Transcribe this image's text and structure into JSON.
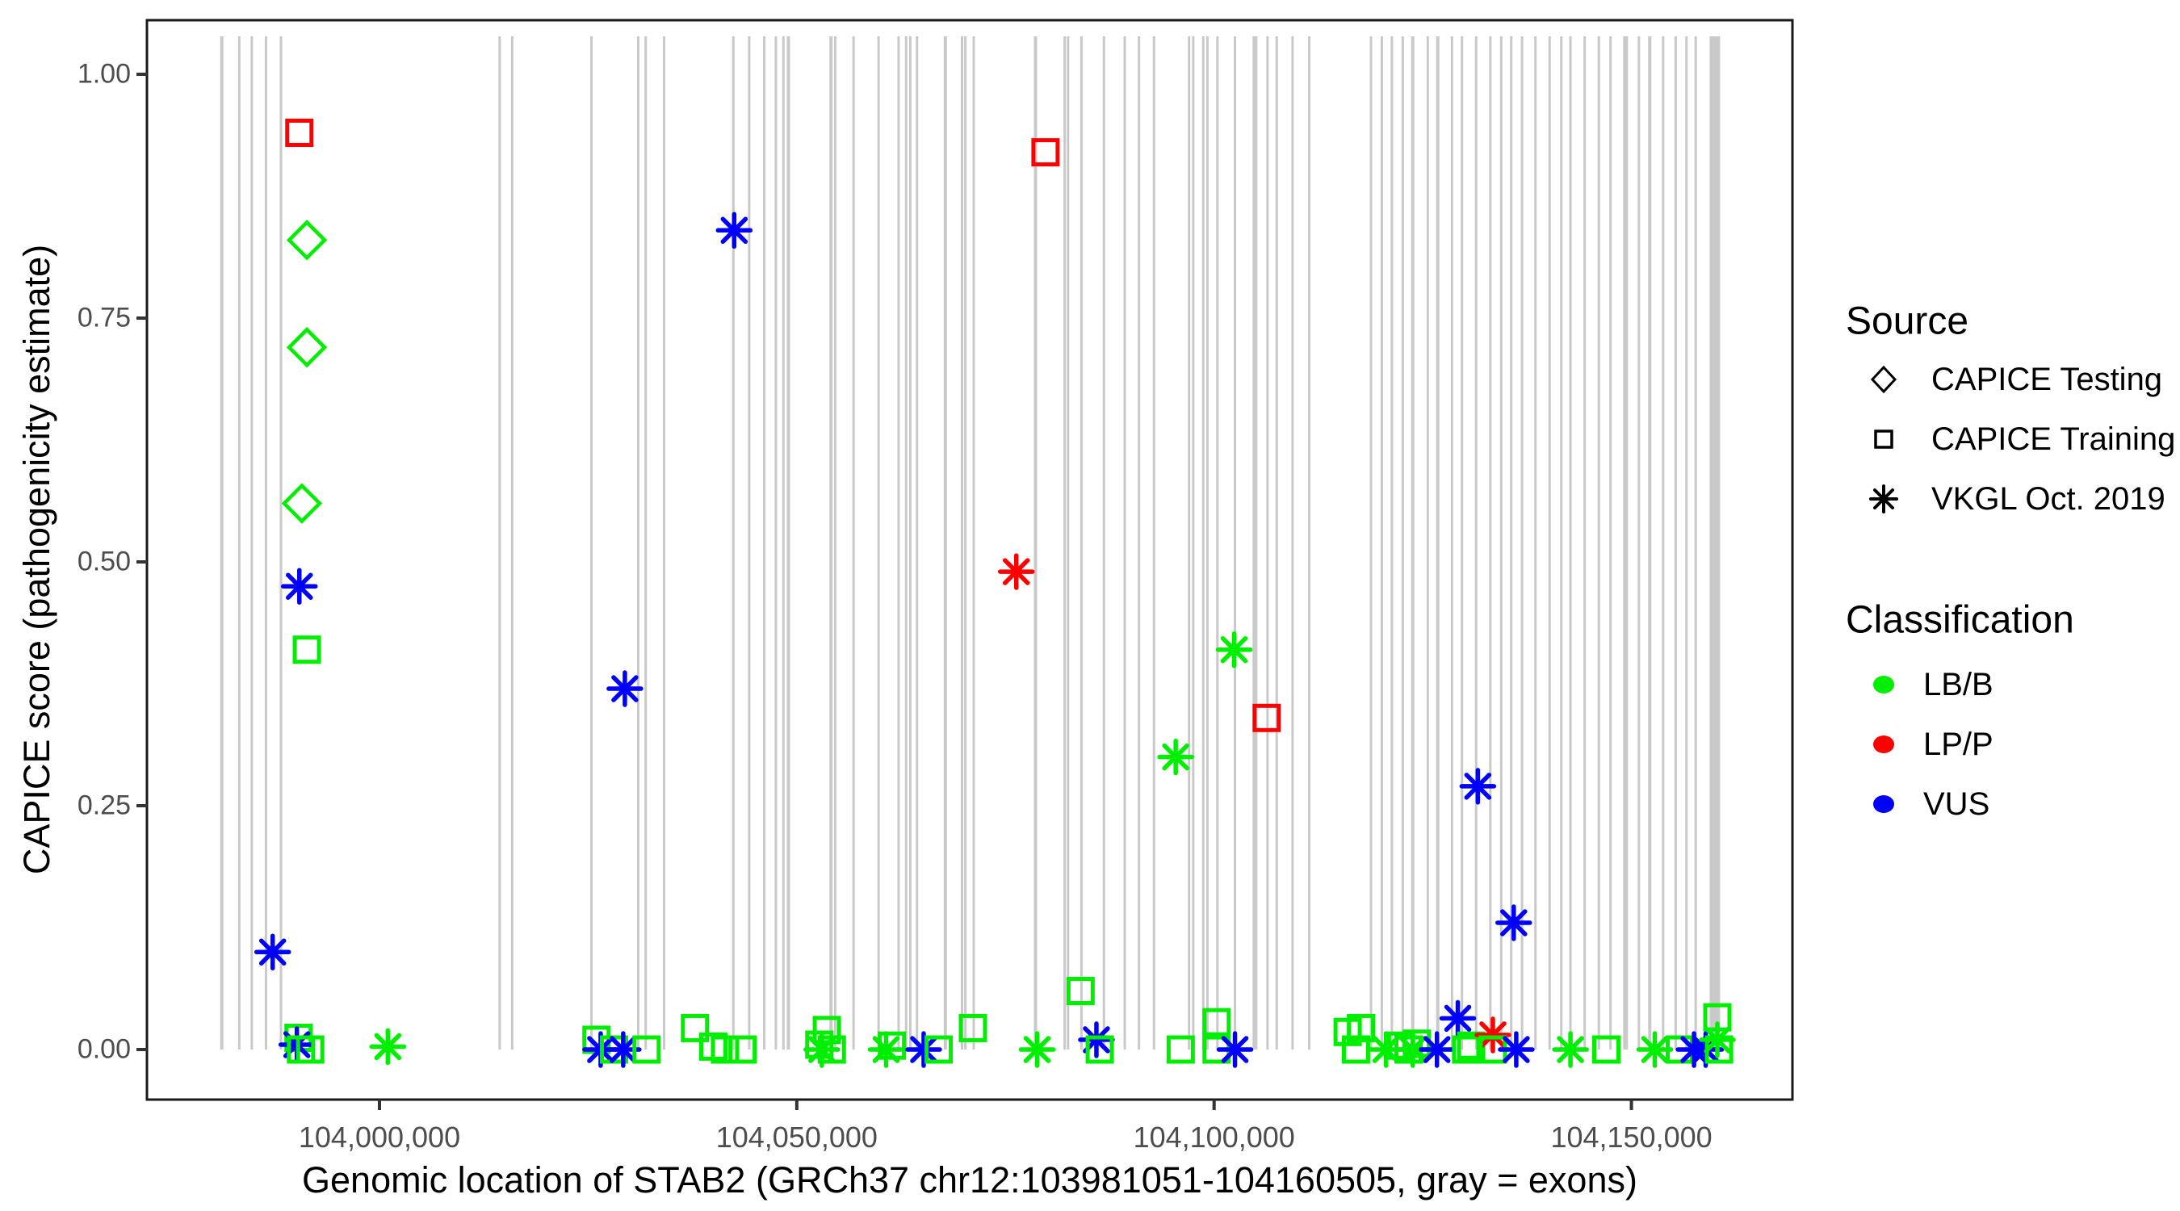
{
  "figure": {
    "y_axis_title": "CAPICE score (pathogenicity estimate)",
    "x_axis_title": "Genomic location of STAB2 (GRCh37 chr12:103981051-104160505, gray = exons)"
  },
  "legend": {
    "source": {
      "title": "Source",
      "items": [
        {
          "label": "CAPICE Testing",
          "glyph": "diamond"
        },
        {
          "label": "CAPICE Training",
          "glyph": "square"
        },
        {
          "label": "VKGL Oct. 2019",
          "glyph": "asterisk"
        }
      ]
    },
    "classification": {
      "title": "Classification",
      "items": [
        {
          "label": "LB/B",
          "color": "#00ee00"
        },
        {
          "label": "LP/P",
          "color": "#ff0000"
        },
        {
          "label": "VUS",
          "color": "#0000ff"
        }
      ]
    }
  },
  "chart_data": {
    "type": "scatter",
    "xlabel": "Genomic location of STAB2 (GRCh37 chr12:103981051-104160505, gray = exons)",
    "ylabel": "CAPICE score (pathogenicity estimate)",
    "xlim": [
      103972100,
      104169300
    ],
    "ylim": [
      -0.051,
      1.056
    ],
    "x_ticks": [
      104000000,
      104050000,
      104100000,
      104150000
    ],
    "x_tick_labels": [
      "104,000,000",
      "104,050,000",
      "104,100,000",
      "104,150,000"
    ],
    "y_ticks": [
      0.0,
      0.25,
      0.5,
      0.75,
      1.0
    ],
    "y_tick_labels": [
      "0.00",
      "0.25",
      "0.50",
      "0.75",
      "1.00"
    ],
    "grid": false,
    "legend_position": "right",
    "colors": {
      "LB/B": "#00ee00",
      "LP/P": "#ff0000",
      "VUS": "#0000ff"
    },
    "shapes": {
      "testing": "diamond",
      "training": "square",
      "vkgl": "asterisk"
    },
    "exon_color": "#c9c9c9",
    "exons": [
      [
        103981100,
        4
      ],
      [
        103983200,
        3
      ],
      [
        103984700,
        3
      ],
      [
        103986400,
        3
      ],
      [
        103988200,
        3
      ],
      [
        104014400,
        3
      ],
      [
        104015900,
        3
      ],
      [
        104025400,
        3
      ],
      [
        104031000,
        3
      ],
      [
        104031900,
        3
      ],
      [
        104034100,
        3
      ],
      [
        104042400,
        3
      ],
      [
        104044300,
        3
      ],
      [
        104046100,
        3
      ],
      [
        104047500,
        3
      ],
      [
        104048400,
        3
      ],
      [
        104049000,
        4
      ],
      [
        104054100,
        4
      ],
      [
        104054600,
        3
      ],
      [
        104056800,
        3
      ],
      [
        104059800,
        3
      ],
      [
        104062200,
        3
      ],
      [
        104063100,
        3
      ],
      [
        104063600,
        3
      ],
      [
        104064400,
        3
      ],
      [
        104067800,
        4
      ],
      [
        104069800,
        3
      ],
      [
        104070200,
        3
      ],
      [
        104071200,
        3
      ],
      [
        104078600,
        4
      ],
      [
        104082100,
        3
      ],
      [
        104082500,
        3
      ],
      [
        104084100,
        3
      ],
      [
        104086800,
        3
      ],
      [
        104089300,
        3
      ],
      [
        104091000,
        3
      ],
      [
        104092800,
        3
      ],
      [
        104097000,
        3
      ],
      [
        104097500,
        3
      ],
      [
        104098700,
        3
      ],
      [
        104099200,
        3
      ],
      [
        104100400,
        3
      ],
      [
        104102500,
        3
      ],
      [
        104104900,
        6
      ],
      [
        104106400,
        3
      ],
      [
        104107500,
        3
      ],
      [
        104109400,
        3
      ],
      [
        104111400,
        3
      ],
      [
        104118800,
        3
      ],
      [
        104120100,
        3
      ],
      [
        104121300,
        3
      ],
      [
        104122600,
        3
      ],
      [
        104123800,
        4
      ],
      [
        104125600,
        3
      ],
      [
        104126800,
        4
      ],
      [
        104128500,
        3
      ],
      [
        104129700,
        3
      ],
      [
        104131400,
        3
      ],
      [
        104133100,
        3
      ],
      [
        104134400,
        3
      ],
      [
        104135600,
        3
      ],
      [
        104136900,
        3
      ],
      [
        104138500,
        3
      ],
      [
        104140200,
        3
      ],
      [
        104141600,
        3
      ],
      [
        104142700,
        3
      ],
      [
        104144400,
        3
      ],
      [
        104146100,
        3
      ],
      [
        104147500,
        3
      ],
      [
        104149300,
        6
      ],
      [
        104150900,
        3
      ],
      [
        104152200,
        4
      ],
      [
        104153800,
        3
      ],
      [
        104155300,
        3
      ],
      [
        104156600,
        3
      ],
      [
        104157700,
        3
      ],
      [
        104160000,
        13
      ]
    ],
    "points": [
      {
        "pos": 103990400,
        "score": 0.94,
        "source": "training",
        "class": "LP/P"
      },
      {
        "pos": 103991300,
        "score": 0.83,
        "source": "testing",
        "class": "LB/B"
      },
      {
        "pos": 103991300,
        "score": 0.72,
        "source": "testing",
        "class": "LB/B"
      },
      {
        "pos": 103990700,
        "score": 0.56,
        "source": "testing",
        "class": "LB/B"
      },
      {
        "pos": 103990400,
        "score": 0.475,
        "source": "vkgl",
        "class": "VUS"
      },
      {
        "pos": 103991300,
        "score": 0.41,
        "source": "training",
        "class": "LB/B"
      },
      {
        "pos": 103987200,
        "score": 0.1,
        "source": "vkgl",
        "class": "VUS"
      },
      {
        "pos": 103990300,
        "score": 0.012,
        "source": "training",
        "class": "LB/B"
      },
      {
        "pos": 103990100,
        "score": 0.005,
        "source": "vkgl",
        "class": "VUS"
      },
      {
        "pos": 103990600,
        "score": 0.0,
        "source": "training",
        "class": "LB/B"
      },
      {
        "pos": 103991700,
        "score": 0.0,
        "source": "training",
        "class": "LB/B"
      },
      {
        "pos": 104001000,
        "score": 0.003,
        "source": "vkgl",
        "class": "LB/B"
      },
      {
        "pos": 104026000,
        "score": 0.01,
        "source": "training",
        "class": "LB/B"
      },
      {
        "pos": 104026500,
        "score": 0.0,
        "source": "vkgl",
        "class": "VUS"
      },
      {
        "pos": 104028100,
        "score": 0.0,
        "source": "training",
        "class": "LB/B"
      },
      {
        "pos": 104029200,
        "score": 0.0,
        "source": "vkgl",
        "class": "VUS"
      },
      {
        "pos": 104029400,
        "score": 0.37,
        "source": "vkgl",
        "class": "VUS"
      },
      {
        "pos": 104032000,
        "score": 0.0,
        "source": "training",
        "class": "LB/B"
      },
      {
        "pos": 104037800,
        "score": 0.022,
        "source": "training",
        "class": "LB/B"
      },
      {
        "pos": 104040000,
        "score": 0.003,
        "source": "training",
        "class": "LB/B"
      },
      {
        "pos": 104041400,
        "score": 0.0,
        "source": "training",
        "class": "LB/B"
      },
      {
        "pos": 104042500,
        "score": 0.84,
        "source": "vkgl",
        "class": "VUS"
      },
      {
        "pos": 104043500,
        "score": 0.0,
        "source": "training",
        "class": "LB/B"
      },
      {
        "pos": 104052700,
        "score": 0.005,
        "source": "training",
        "class": "LB/B"
      },
      {
        "pos": 104053000,
        "score": 0.0,
        "source": "vkgl",
        "class": "LB/B"
      },
      {
        "pos": 104053600,
        "score": 0.02,
        "source": "training",
        "class": "LB/B"
      },
      {
        "pos": 104054200,
        "score": 0.0,
        "source": "training",
        "class": "LB/B"
      },
      {
        "pos": 104060700,
        "score": 0.0,
        "source": "vkgl",
        "class": "LB/B"
      },
      {
        "pos": 104061400,
        "score": 0.004,
        "source": "training",
        "class": "LB/B"
      },
      {
        "pos": 104065200,
        "score": 0.0,
        "source": "vkgl",
        "class": "VUS"
      },
      {
        "pos": 104067000,
        "score": 0.0,
        "source": "training",
        "class": "LB/B"
      },
      {
        "pos": 104071100,
        "score": 0.022,
        "source": "training",
        "class": "LB/B"
      },
      {
        "pos": 104076300,
        "score": 0.49,
        "source": "vkgl",
        "class": "LP/P"
      },
      {
        "pos": 104078800,
        "score": 0.0,
        "source": "vkgl",
        "class": "LB/B"
      },
      {
        "pos": 104079800,
        "score": 0.92,
        "source": "training",
        "class": "LP/P"
      },
      {
        "pos": 104084000,
        "score": 0.06,
        "source": "training",
        "class": "LB/B"
      },
      {
        "pos": 104085900,
        "score": 0.01,
        "source": "vkgl",
        "class": "VUS"
      },
      {
        "pos": 104086300,
        "score": 0.0,
        "source": "training",
        "class": "LB/B"
      },
      {
        "pos": 104095400,
        "score": 0.3,
        "source": "vkgl",
        "class": "LB/B"
      },
      {
        "pos": 104096000,
        "score": 0.0,
        "source": "training",
        "class": "LB/B"
      },
      {
        "pos": 104100300,
        "score": 0.028,
        "source": "training",
        "class": "LB/B"
      },
      {
        "pos": 104100300,
        "score": 0.0,
        "source": "training",
        "class": "LB/B"
      },
      {
        "pos": 104102400,
        "score": 0.41,
        "source": "vkgl",
        "class": "LB/B"
      },
      {
        "pos": 104102500,
        "score": 0.0,
        "source": "vkgl",
        "class": "VUS"
      },
      {
        "pos": 104106300,
        "score": 0.34,
        "source": "training",
        "class": "LP/P"
      },
      {
        "pos": 104116000,
        "score": 0.018,
        "source": "training",
        "class": "LB/B"
      },
      {
        "pos": 104117000,
        "score": 0.0,
        "source": "training",
        "class": "LB/B"
      },
      {
        "pos": 104117600,
        "score": 0.022,
        "source": "training",
        "class": "LB/B"
      },
      {
        "pos": 104120600,
        "score": 0.0,
        "source": "vkgl",
        "class": "LB/B"
      },
      {
        "pos": 104122400,
        "score": 0.004,
        "source": "training",
        "class": "LB/B"
      },
      {
        "pos": 104123300,
        "score": 0.0,
        "source": "training",
        "class": "LB/B"
      },
      {
        "pos": 104123800,
        "score": 0.0,
        "source": "vkgl",
        "class": "LB/B"
      },
      {
        "pos": 104124300,
        "score": 0.006,
        "source": "training",
        "class": "LB/B"
      },
      {
        "pos": 104126700,
        "score": 0.0,
        "source": "vkgl",
        "class": "VUS"
      },
      {
        "pos": 104129200,
        "score": 0.032,
        "source": "vkgl",
        "class": "VUS"
      },
      {
        "pos": 104130200,
        "score": 0.0,
        "source": "training",
        "class": "LB/B"
      },
      {
        "pos": 104130800,
        "score": 0.004,
        "source": "training",
        "class": "LB/B"
      },
      {
        "pos": 104131600,
        "score": 0.27,
        "source": "vkgl",
        "class": "VUS"
      },
      {
        "pos": 104133400,
        "score": 0.015,
        "source": "vkgl",
        "class": "LP/P"
      },
      {
        "pos": 104133400,
        "score": 0.0,
        "source": "training",
        "class": "LB/B"
      },
      {
        "pos": 104135900,
        "score": 0.13,
        "source": "vkgl",
        "class": "VUS"
      },
      {
        "pos": 104136200,
        "score": 0.0,
        "source": "vkgl",
        "class": "VUS"
      },
      {
        "pos": 104142700,
        "score": 0.0,
        "source": "vkgl",
        "class": "LB/B"
      },
      {
        "pos": 104147000,
        "score": 0.0,
        "source": "training",
        "class": "LB/B"
      },
      {
        "pos": 104152800,
        "score": 0.0,
        "source": "vkgl",
        "class": "LB/B"
      },
      {
        "pos": 104155800,
        "score": 0.0,
        "source": "training",
        "class": "LB/B"
      },
      {
        "pos": 104157500,
        "score": 0.0,
        "source": "vkgl",
        "class": "VUS"
      },
      {
        "pos": 104158900,
        "score": 0.0,
        "source": "vkgl",
        "class": "VUS"
      },
      {
        "pos": 104160300,
        "score": 0.033,
        "source": "training",
        "class": "LB/B"
      },
      {
        "pos": 104160300,
        "score": 0.01,
        "source": "vkgl",
        "class": "LB/B"
      },
      {
        "pos": 104160500,
        "score": 0.0,
        "source": "training",
        "class": "LB/B"
      }
    ]
  }
}
